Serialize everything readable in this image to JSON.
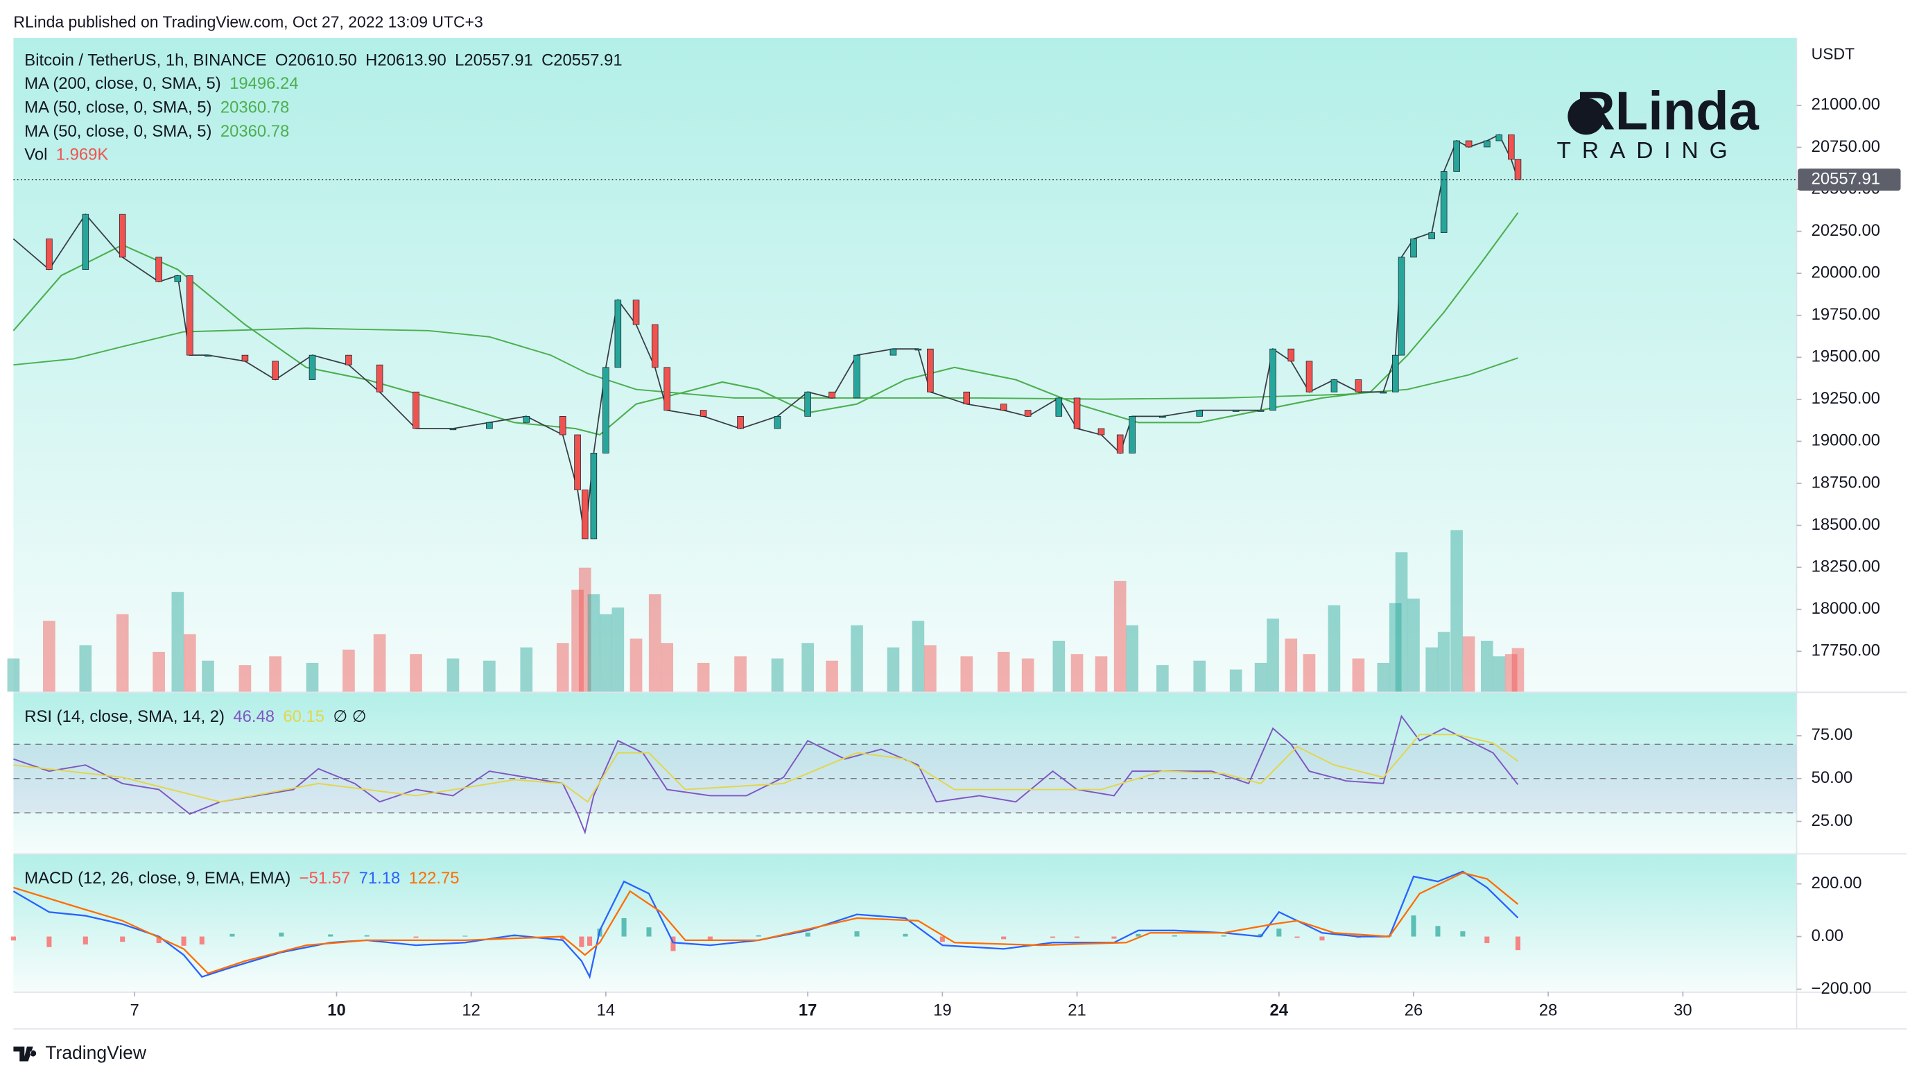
{
  "header": {
    "text": "RLinda published on TradingView.com, Oct 27, 2022 13:09 UTC+3"
  },
  "watermark": {
    "title": "RLinda",
    "subtitle": "TRADING"
  },
  "footer": {
    "brand": "TradingView"
  },
  "chart_data": [
    {
      "type": "candlestick",
      "title": "Bitcoin / TetherUS, 1h, BINANCE",
      "ohlc_labels": [
        "O20610.50",
        "H20613.90",
        "L20557.91",
        "C20557.91"
      ],
      "axis_unit": "USDT",
      "colors": {
        "up": "#26a69a",
        "down": "#ef5350"
      },
      "xlim": [
        5.2,
        31.69
      ],
      "xticks": [
        7,
        10,
        12,
        14,
        17,
        19,
        21,
        24,
        26,
        28,
        30
      ],
      "major_xticks": [
        10,
        17,
        24
      ],
      "ylim": [
        17510,
        21401
      ],
      "yticks": [
        {
          "value": 17750,
          "label": "17750.00"
        },
        {
          "value": 18000,
          "label": "18000.00"
        },
        {
          "value": 18250,
          "label": "18250.00"
        },
        {
          "value": 18500,
          "label": "18500.00"
        },
        {
          "value": 18750,
          "label": "18750.00"
        },
        {
          "value": 19000,
          "label": "19000.00"
        },
        {
          "value": 19250,
          "label": "19250.00"
        },
        {
          "value": 19500,
          "label": "19500.00"
        },
        {
          "value": 19750,
          "label": "19750.00"
        },
        {
          "value": 20000,
          "label": "20000.00"
        },
        {
          "value": 20250,
          "label": "20250.00"
        },
        {
          "value": 20500,
          "label": "20500.00"
        },
        {
          "value": 20750,
          "label": "20750.00"
        },
        {
          "value": 21000,
          "label": "21000.00"
        }
      ],
      "x": [
        5.2,
        5.73,
        6.27,
        6.82,
        7.36,
        7.64,
        7.82,
        8.09,
        8.64,
        9.09,
        9.64,
        10.18,
        10.64,
        11.18,
        11.73,
        12.27,
        12.82,
        13.36,
        13.58,
        13.69,
        13.82,
        14.0,
        14.18,
        14.45,
        14.73,
        14.91,
        15.45,
        16.0,
        16.55,
        17.0,
        17.36,
        17.73,
        18.27,
        18.64,
        18.82,
        19.36,
        19.91,
        20.27,
        20.73,
        21.0,
        21.36,
        21.64,
        21.82,
        22.27,
        22.82,
        23.36,
        23.73,
        23.91,
        24.18,
        24.45,
        24.82,
        25.18,
        25.55,
        25.73,
        25.82,
        26.0,
        26.27,
        26.45,
        26.64,
        26.82,
        27.09,
        27.27,
        27.45,
        27.55
      ],
      "values": [
        20205,
        20023,
        20351,
        20096,
        19950,
        19986,
        19513,
        19513,
        19477,
        19367,
        19513,
        19455,
        19294,
        19076,
        19076,
        19112,
        19149,
        19039,
        18711,
        18420,
        18930,
        19440,
        19841,
        19695,
        19440,
        19185,
        19149,
        19076,
        19149,
        19294,
        19258,
        19513,
        19550,
        19550,
        19294,
        19222,
        19185,
        19149,
        19258,
        19076,
        19039,
        18930,
        19149,
        19149,
        19185,
        19185,
        19185,
        19550,
        19477,
        19294,
        19367,
        19294,
        19294,
        19513,
        20096,
        20205,
        20242,
        20606,
        20789,
        20752,
        20789,
        20825,
        20679,
        20557.91
      ],
      "volume": {
        "name": "Vol",
        "values": [
          1.5,
          3.2,
          2.1,
          3.5,
          1.8,
          4.5,
          2.6,
          1.4,
          1.2,
          1.6,
          1.3,
          1.9,
          2.6,
          1.7,
          1.5,
          1.4,
          2.0,
          2.2,
          4.6,
          5.6,
          4.4,
          3.5,
          3.8,
          2.4,
          4.4,
          2.2,
          1.3,
          1.6,
          1.5,
          2.2,
          1.4,
          3.0,
          2.0,
          3.2,
          2.1,
          1.6,
          1.8,
          1.5,
          2.3,
          1.7,
          1.6,
          5.0,
          3.0,
          1.2,
          1.4,
          1.0,
          1.3,
          3.3,
          2.4,
          1.7,
          3.9,
          1.5,
          1.3,
          4.0,
          6.3,
          4.2,
          2.0,
          2.7,
          7.3,
          2.5,
          2.3,
          1.6,
          1.7,
          1.969
        ],
        "value_labels": [
          null,
          null,
          null,
          null,
          null,
          null,
          null,
          null,
          null,
          null,
          null,
          null,
          null,
          null,
          null,
          null,
          null,
          null,
          null,
          null,
          null,
          null,
          null,
          null,
          null,
          null,
          null,
          null,
          null,
          null,
          null,
          null,
          null,
          null,
          null,
          null,
          null,
          null,
          null,
          null,
          null,
          null,
          null,
          null,
          null,
          null,
          null,
          null,
          null,
          null,
          null,
          null,
          null,
          null,
          null,
          null,
          null,
          null,
          null,
          null,
          null,
          null,
          null,
          "1.969K"
        ]
      },
      "series": [
        {
          "name": "MA (200, close, 0, SMA, 5)",
          "color": "#4caf50",
          "x": [
            5.2,
            6.09,
            6.82,
            7.73,
            9.55,
            11.36,
            12.27,
            13.18,
            13.73,
            14.45,
            15.91,
            17.73,
            19.55,
            21.36,
            23.18,
            25.0,
            25.91,
            26.82,
            27.55
          ],
          "values": [
            19455,
            19491,
            19564,
            19652,
            19673,
            19659,
            19622,
            19513,
            19404,
            19309,
            19258,
            19258,
            19258,
            19251,
            19258,
            19280,
            19309,
            19396,
            19496.24
          ]
        },
        {
          "name": "MA (50, close, 0, SMA, 5)",
          "color": "#4caf50",
          "x": [
            5.2,
            5.91,
            6.82,
            7.64,
            8.64,
            9.55,
            10.45,
            11.73,
            12.64,
            13.55,
            13.91,
            14.45,
            15.18,
            15.73,
            16.27,
            17.0,
            17.73,
            18.45,
            19.18,
            20.09,
            21.0,
            21.91,
            22.82,
            23.73,
            24.64,
            25.36,
            25.91,
            26.45,
            27.0,
            27.55
          ],
          "values": [
            19659,
            19987,
            20169,
            20023,
            19695,
            19440,
            19367,
            19222,
            19112,
            19076,
            19039,
            19222,
            19294,
            19353,
            19309,
            19170,
            19222,
            19367,
            19440,
            19367,
            19222,
            19112,
            19112,
            19185,
            19258,
            19294,
            19513,
            19768,
            20060,
            20360.78
          ]
        },
        {
          "name": "MA (50, close, 0, SMA, 5)",
          "color": "#4caf50",
          "x": [
            5.2,
            5.91,
            6.82,
            7.64,
            8.64,
            9.55,
            10.45,
            11.73,
            12.64,
            13.55,
            13.91,
            14.45,
            15.18,
            15.73,
            16.27,
            17.0,
            17.73,
            18.45,
            19.18,
            20.09,
            21.0,
            21.91,
            22.82,
            23.73,
            24.64,
            25.36,
            25.91,
            26.45,
            27.0,
            27.55
          ],
          "values": [
            19659,
            19987,
            20169,
            20023,
            19695,
            19440,
            19367,
            19222,
            19112,
            19076,
            19039,
            19222,
            19294,
            19353,
            19309,
            19170,
            19222,
            19367,
            19440,
            19367,
            19222,
            19112,
            19112,
            19185,
            19258,
            19294,
            19513,
            19768,
            20060,
            20360.78
          ]
        }
      ]
    },
    {
      "type": "line",
      "title": "RSI (14, close, SMA, 14, 2)",
      "symbols": "∅ ∅",
      "ylim": [
        6.4,
        100
      ],
      "yticks": [
        {
          "value": 75,
          "label": "75.00"
        },
        {
          "value": 50,
          "label": "50.00"
        },
        {
          "value": 25,
          "label": "25.00"
        }
      ],
      "levels": [
        70,
        50,
        30
      ],
      "band_color": "#7e57c2",
      "series": [
        {
          "color": "#7e57c2",
          "x": [
            5.2,
            5.73,
            6.27,
            6.82,
            7.36,
            7.82,
            8.27,
            8.82,
            9.36,
            9.73,
            10.27,
            10.64,
            11.18,
            11.73,
            12.27,
            12.82,
            13.36,
            13.58,
            13.69,
            13.82,
            14.18,
            14.55,
            14.91,
            15.55,
            16.09,
            16.64,
            17.0,
            17.55,
            18.09,
            18.64,
            18.91,
            19.55,
            20.09,
            20.64,
            21.0,
            21.55,
            21.82,
            22.45,
            23.0,
            23.55,
            23.91,
            24.18,
            24.45,
            25.0,
            25.55,
            25.82,
            26.09,
            26.45,
            26.82,
            27.18,
            27.55
          ],
          "values": [
            61.4,
            54.3,
            57.9,
            47.1,
            43.6,
            29.3,
            36.4,
            40.0,
            43.6,
            55.7,
            47.1,
            36.4,
            43.6,
            40.0,
            54.3,
            50.7,
            47.1,
            29.3,
            18.6,
            40.0,
            72.1,
            65.0,
            43.6,
            40.0,
            40.0,
            50.7,
            72.1,
            61.4,
            67.1,
            57.9,
            36.4,
            40.0,
            36.4,
            54.3,
            43.6,
            40.0,
            54.3,
            54.3,
            54.3,
            47.1,
            79.3,
            70.0,
            54.3,
            48.6,
            47.1,
            86.4,
            72.1,
            79.3,
            72.1,
            65.0,
            46.48
          ]
        },
        {
          "color": "#e2d64a",
          "x": [
            5.2,
            6.82,
            8.27,
            9.73,
            11.18,
            12.64,
            13.36,
            13.73,
            14.18,
            14.64,
            15.18,
            16.64,
            17.73,
            18.45,
            19.18,
            20.45,
            21.36,
            22.27,
            23.18,
            23.73,
            24.27,
            24.82,
            25.55,
            26.09,
            26.64,
            27.18,
            27.55
          ],
          "values": [
            57.9,
            50.7,
            36.4,
            47.1,
            40.0,
            49.3,
            47.1,
            36.4,
            65.0,
            65.0,
            43.6,
            47.1,
            65.0,
            61.4,
            43.6,
            43.6,
            43.6,
            54.3,
            52.9,
            47.1,
            68.6,
            57.9,
            50.7,
            75.7,
            75.7,
            70.7,
            60.15
          ]
        }
      ]
    },
    {
      "type": "macd",
      "title": "MACD (12, 26, close, 9, EMA, EMA)",
      "ylim": [
        -209,
        311.6
      ],
      "yticks": [
        {
          "value": 200,
          "label": "200.00"
        },
        {
          "value": 0,
          "label": "0.00"
        },
        {
          "value": -200,
          "label": "−200.00"
        }
      ],
      "histogram": {
        "colors": {
          "up": "#26a69a",
          "down": "#ff5252"
        },
        "x": [
          5.2,
          5.73,
          6.27,
          6.82,
          7.36,
          7.73,
          8.0,
          8.45,
          9.18,
          9.91,
          10.45,
          11.18,
          11.91,
          12.64,
          13.36,
          13.64,
          13.76,
          13.91,
          14.27,
          14.64,
          15.0,
          15.55,
          16.27,
          17.0,
          17.73,
          18.45,
          19.0,
          19.91,
          20.64,
          21.0,
          21.55,
          21.91,
          22.45,
          23.18,
          23.73,
          24.0,
          24.27,
          24.64,
          25.18,
          25.64,
          26.0,
          26.36,
          26.73,
          27.09,
          27.55
        ],
        "values": [
          -15,
          -40,
          -30,
          -20,
          -25,
          -35,
          -30,
          10,
          15,
          8,
          5,
          -5,
          3,
          5,
          -10,
          -40,
          -35,
          30,
          70,
          35,
          -55,
          -15,
          5,
          15,
          20,
          10,
          -20,
          -10,
          -5,
          -5,
          -8,
          10,
          5,
          5,
          10,
          30,
          -5,
          -15,
          -5,
          5,
          80,
          40,
          20,
          -25,
          -51.57
        ],
        "value_labels": [
          null,
          null,
          null,
          null,
          null,
          null,
          null,
          null,
          null,
          null,
          null,
          null,
          null,
          null,
          null,
          null,
          null,
          null,
          null,
          null,
          null,
          null,
          null,
          null,
          null,
          null,
          null,
          null,
          null,
          null,
          null,
          null,
          null,
          null,
          null,
          null,
          null,
          null,
          null,
          null,
          null,
          null,
          null,
          null,
          "−51.57"
        ]
      },
      "series": [
        {
          "color": "#2962ff",
          "x": [
            5.2,
            5.73,
            6.27,
            6.82,
            7.36,
            7.73,
            8.0,
            8.45,
            9.18,
            9.91,
            10.45,
            11.18,
            11.91,
            12.64,
            13.36,
            13.64,
            13.76,
            13.91,
            14.27,
            14.64,
            15.0,
            15.55,
            16.27,
            17.0,
            17.73,
            18.45,
            19.0,
            19.91,
            20.64,
            21.0,
            21.55,
            21.91,
            22.45,
            23.18,
            23.73,
            24.0,
            24.27,
            24.64,
            25.18,
            25.64,
            26.0,
            26.36,
            26.73,
            27.09,
            27.55
          ],
          "values": [
            172,
            93,
            79,
            47,
            0,
            -70,
            -153,
            -116,
            -60,
            -23,
            -14,
            -33,
            -23,
            5,
            -14,
            -93,
            -153,
            23,
            209,
            163,
            -23,
            -33,
            -14,
            23,
            84,
            70,
            -33,
            -47,
            -23,
            -23,
            -23,
            23,
            23,
            14,
            0,
            93,
            60,
            14,
            0,
            0,
            228,
            209,
            247,
            186,
            71.18
          ]
        },
        {
          "color": "#ff6d00",
          "x": [
            5.2,
            6.09,
            6.82,
            7.73,
            8.09,
            8.64,
            9.55,
            10.45,
            11.91,
            13.36,
            13.69,
            13.91,
            14.36,
            14.82,
            15.18,
            16.27,
            17.73,
            18.64,
            19.18,
            20.45,
            21.73,
            22.09,
            23.18,
            23.91,
            24.27,
            24.82,
            25.64,
            26.09,
            26.73,
            27.09,
            27.55
          ],
          "values": [
            186,
            116,
            60,
            -47,
            -140,
            -93,
            -33,
            -14,
            -14,
            0,
            -70,
            -23,
            172,
            93,
            -14,
            -14,
            70,
            60,
            -23,
            -33,
            -23,
            14,
            14,
            47,
            60,
            14,
            0,
            163,
            242,
            219,
            122.75
          ]
        }
      ]
    }
  ]
}
